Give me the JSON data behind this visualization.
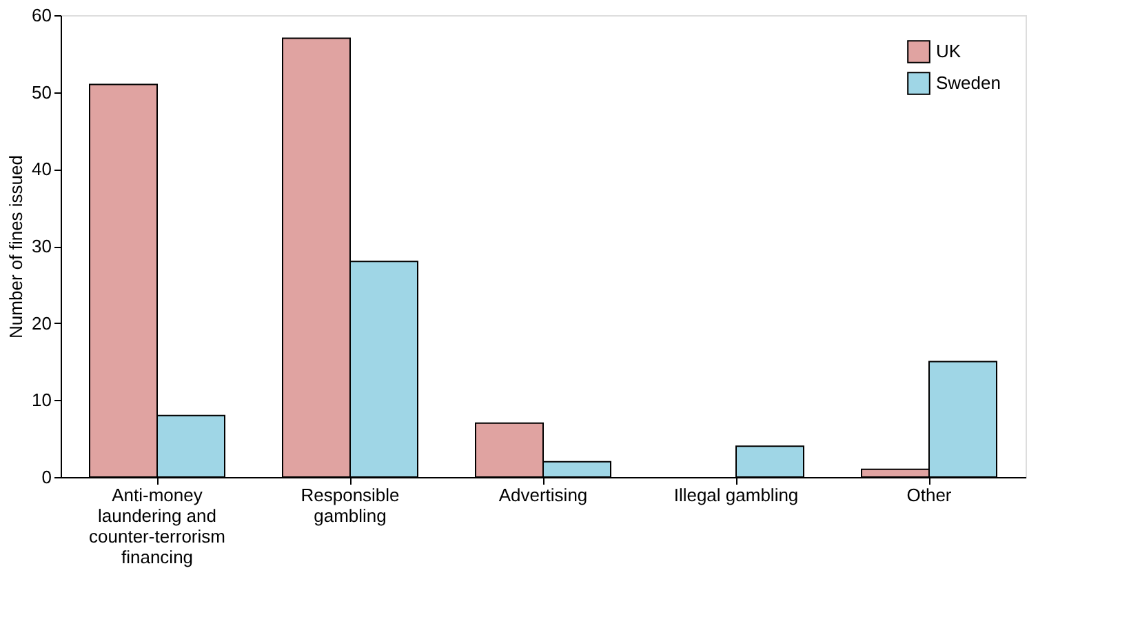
{
  "chart_data": {
    "type": "bar",
    "ylabel": "Number of fines issued",
    "categories": [
      "Anti-money laundering and counter-terrorism financing",
      "Responsible gambling",
      "Advertising",
      "Illegal gambling",
      "Other"
    ],
    "series": [
      {
        "name": "UK",
        "color": "#e0a3a1",
        "values": [
          51,
          57,
          7,
          null,
          1
        ]
      },
      {
        "name": "Sweden",
        "color": "#9fd6e6",
        "values": [
          8,
          28,
          2,
          4,
          15
        ]
      }
    ],
    "ylim": [
      0,
      60
    ],
    "yticks": [
      0,
      10,
      20,
      30,
      40,
      50,
      60
    ],
    "grid": false,
    "legend": "top right"
  }
}
